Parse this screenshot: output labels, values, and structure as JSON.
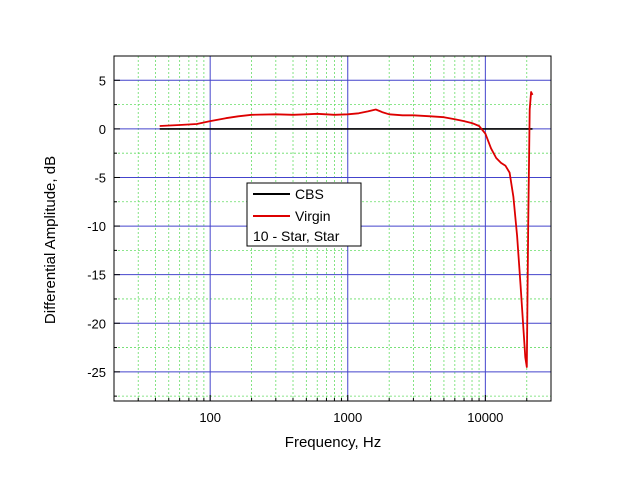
{
  "chart_data": {
    "type": "line",
    "title": "",
    "xlabel": "Frequency, Hz",
    "ylabel": "Differential Amplitude, dB",
    "xscale": "log",
    "xlim": [
      20,
      30000
    ],
    "ylim": [
      -28,
      7.5
    ],
    "x_ticks": [
      100,
      1000,
      10000
    ],
    "x_tick_labels": [
      "100",
      "1000",
      "10000"
    ],
    "y_ticks": [
      5,
      0,
      -5,
      -10,
      -15,
      -20,
      -25
    ],
    "y_tick_labels": [
      "5",
      "0",
      "-5",
      "-10",
      "-15",
      "-20",
      "-25"
    ],
    "grid": {
      "major": true,
      "minor": true,
      "major_color": "#4444cc",
      "minor_color": "#66dd66"
    },
    "legend": {
      "placement": "center-left",
      "entries": [
        "CBS",
        "Virgin"
      ],
      "note": "10 - Star, Star"
    },
    "series": [
      {
        "name": "CBS",
        "color": "#000000",
        "x": [
          43,
          22000
        ],
        "y": [
          0,
          0
        ]
      },
      {
        "name": "Virgin",
        "color": "#dd0000",
        "x": [
          43,
          60,
          80,
          100,
          130,
          160,
          200,
          300,
          400,
          500,
          600,
          800,
          1000,
          1200,
          1400,
          1600,
          1800,
          2000,
          2500,
          3000,
          4000,
          5000,
          6000,
          7000,
          8000,
          9000,
          10000,
          11000,
          12000,
          13000,
          14000,
          15000,
          16000,
          17000,
          18000,
          19000,
          19500,
          20000,
          20500,
          21000,
          21500,
          22000
        ],
        "y": [
          0.3,
          0.4,
          0.5,
          0.8,
          1.1,
          1.3,
          1.45,
          1.5,
          1.45,
          1.5,
          1.55,
          1.45,
          1.5,
          1.6,
          1.8,
          2.0,
          1.7,
          1.5,
          1.4,
          1.4,
          1.3,
          1.2,
          1.0,
          0.8,
          0.6,
          0.3,
          -0.5,
          -2.0,
          -3.0,
          -3.5,
          -3.8,
          -4.5,
          -7.0,
          -11.0,
          -16.0,
          -21.0,
          -23.5,
          -24.5,
          -10.0,
          2.0,
          3.8,
          3.5
        ]
      }
    ]
  }
}
